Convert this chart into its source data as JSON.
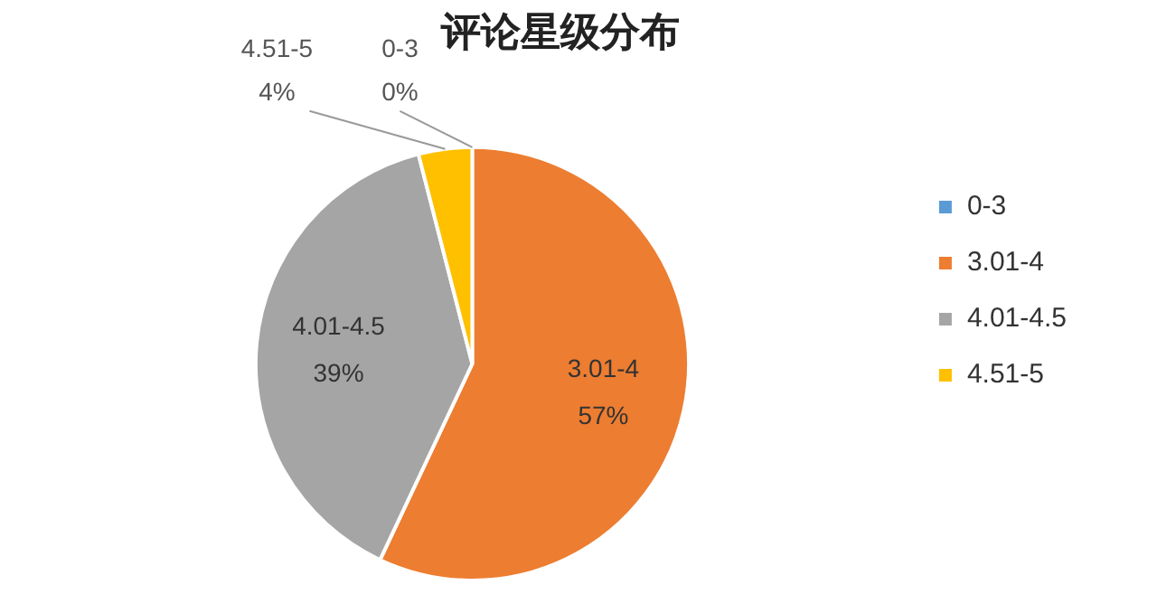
{
  "chart_data": {
    "type": "pie",
    "title": "评论星级分布",
    "categories": [
      "0-3",
      "3.01-4",
      "4.01-4.5",
      "4.51-5"
    ],
    "values": [
      0,
      57,
      39,
      4
    ],
    "colors": [
      "#5b9bd5",
      "#ed7d31",
      "#a5a5a5",
      "#ffc000"
    ],
    "value_labels": [
      "0%",
      "57%",
      "39%",
      "4%"
    ],
    "legend": "right"
  }
}
